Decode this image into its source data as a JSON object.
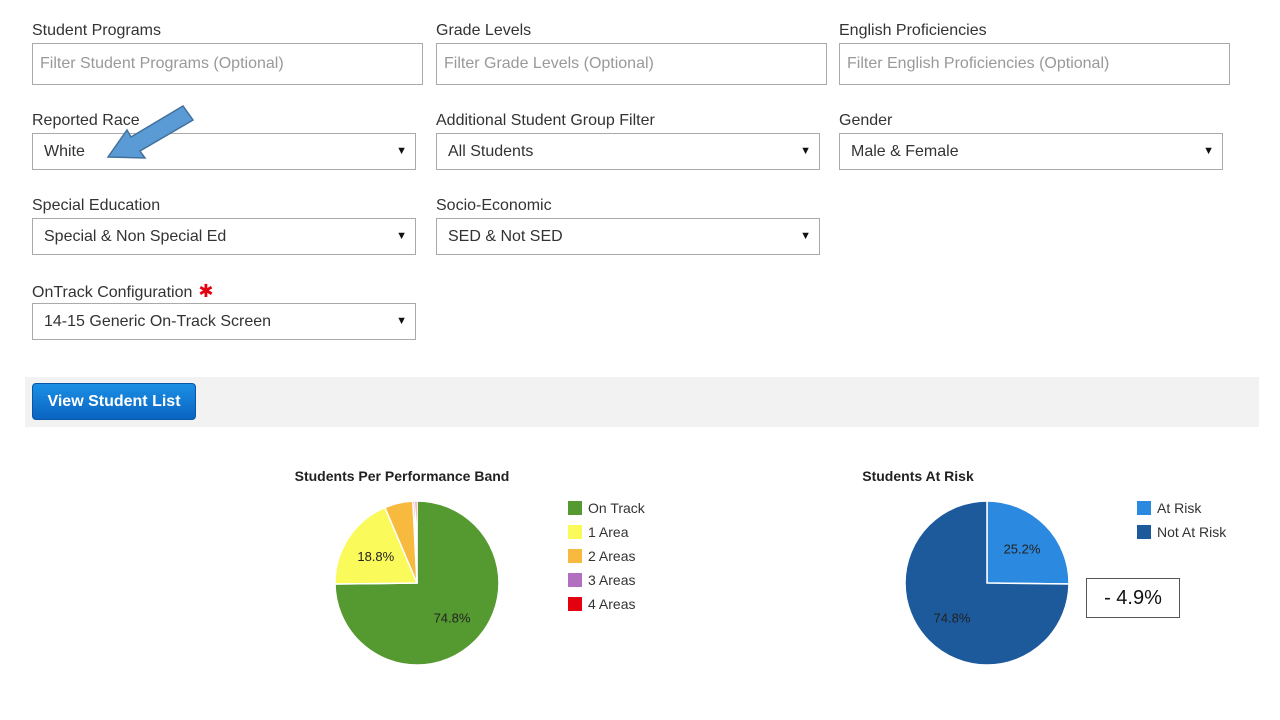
{
  "filters": {
    "student_programs": {
      "label": "Student Programs",
      "placeholder": "Filter Student Programs (Optional)"
    },
    "grade_levels": {
      "label": "Grade Levels",
      "placeholder": "Filter Grade Levels (Optional)"
    },
    "english_proficiencies": {
      "label": "English Proficiencies",
      "placeholder": "Filter English Proficiencies (Optional)"
    },
    "reported_race": {
      "label": "Reported Race",
      "value": "White"
    },
    "additional_group": {
      "label": "Additional Student Group Filter",
      "value": "All Students"
    },
    "gender": {
      "label": "Gender",
      "value": "Male & Female"
    },
    "special_education": {
      "label": "Special Education",
      "value": "Special & Non Special Ed"
    },
    "socio_economic": {
      "label": "Socio-Economic",
      "value": "SED & Not SED"
    },
    "ontrack_configuration": {
      "label": "OnTrack Configuration",
      "required_mark": "✱",
      "value": "14-15 Generic On-Track Screen"
    }
  },
  "dropdown_caret": "▼",
  "view_button": {
    "label": "View Student List"
  },
  "colors": {
    "on_track": "#559a30",
    "one_area": "#fafa5a",
    "two_areas": "#f7b93e",
    "three_areas": "#b36fbf",
    "four_areas": "#e3000f",
    "at_risk": "#2b89e0",
    "not_at_risk": "#1c5a9c",
    "button": "#0a64c2",
    "arrow": "#5b9bd5"
  },
  "chart_data": [
    {
      "type": "pie",
      "title": "Students Per Performance Band",
      "series": [
        {
          "name": "On Track",
          "value": 74.8,
          "label": "74.8%",
          "color": "#559a30"
        },
        {
          "name": "1 Area",
          "value": 18.8,
          "label": "18.8%",
          "color": "#fafa5a"
        },
        {
          "name": "2 Areas",
          "value": 5.6,
          "label": "",
          "color": "#f7b93e"
        },
        {
          "name": "3 Areas",
          "value": 0.4,
          "label": "",
          "color": "#b36fbf"
        },
        {
          "name": "4 Areas",
          "value": 0.4,
          "label": "",
          "color": "#e3000f"
        }
      ],
      "legend_position": "right"
    },
    {
      "type": "pie",
      "title": "Students At Risk",
      "series": [
        {
          "name": "At Risk",
          "value": 25.2,
          "label": "25.2%",
          "color": "#2b89e0"
        },
        {
          "name": "Not At Risk",
          "value": 74.8,
          "label": "74.8%",
          "color": "#1c5a9c"
        }
      ],
      "legend_position": "right"
    }
  ],
  "annotation": {
    "callout_text": "- 4.9%",
    "arrow_icon": "arrow-pointer-icon"
  }
}
